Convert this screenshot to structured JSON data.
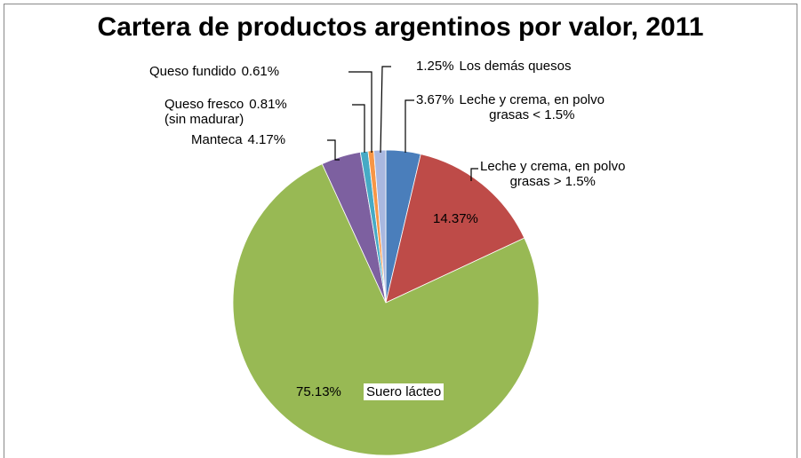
{
  "chart_data": {
    "type": "pie",
    "title": "Cartera de productos argentinos por valor, 2011",
    "categories": [
      "Leche y crema, en polvo\ngrasas < 1.5%",
      "Leche y crema, en polvo\ngrasas > 1.5%",
      "Suero lácteo",
      "Manteca",
      "Queso fresco\n(sin madurar)",
      "Queso fundido",
      "Los demás quesos"
    ],
    "values": [
      3.67,
      14.37,
      75.13,
      4.17,
      0.81,
      0.61,
      1.25
    ],
    "value_labels": [
      "3.67%",
      "14.37%",
      "75.13%",
      "4.17%",
      "0.81%",
      "0.61%",
      "1.25%"
    ],
    "colors": [
      "#4a7ebb",
      "#be4b48",
      "#98b954",
      "#7d60a0",
      "#46aac5",
      "#f79646",
      "#a9b8e0"
    ]
  }
}
